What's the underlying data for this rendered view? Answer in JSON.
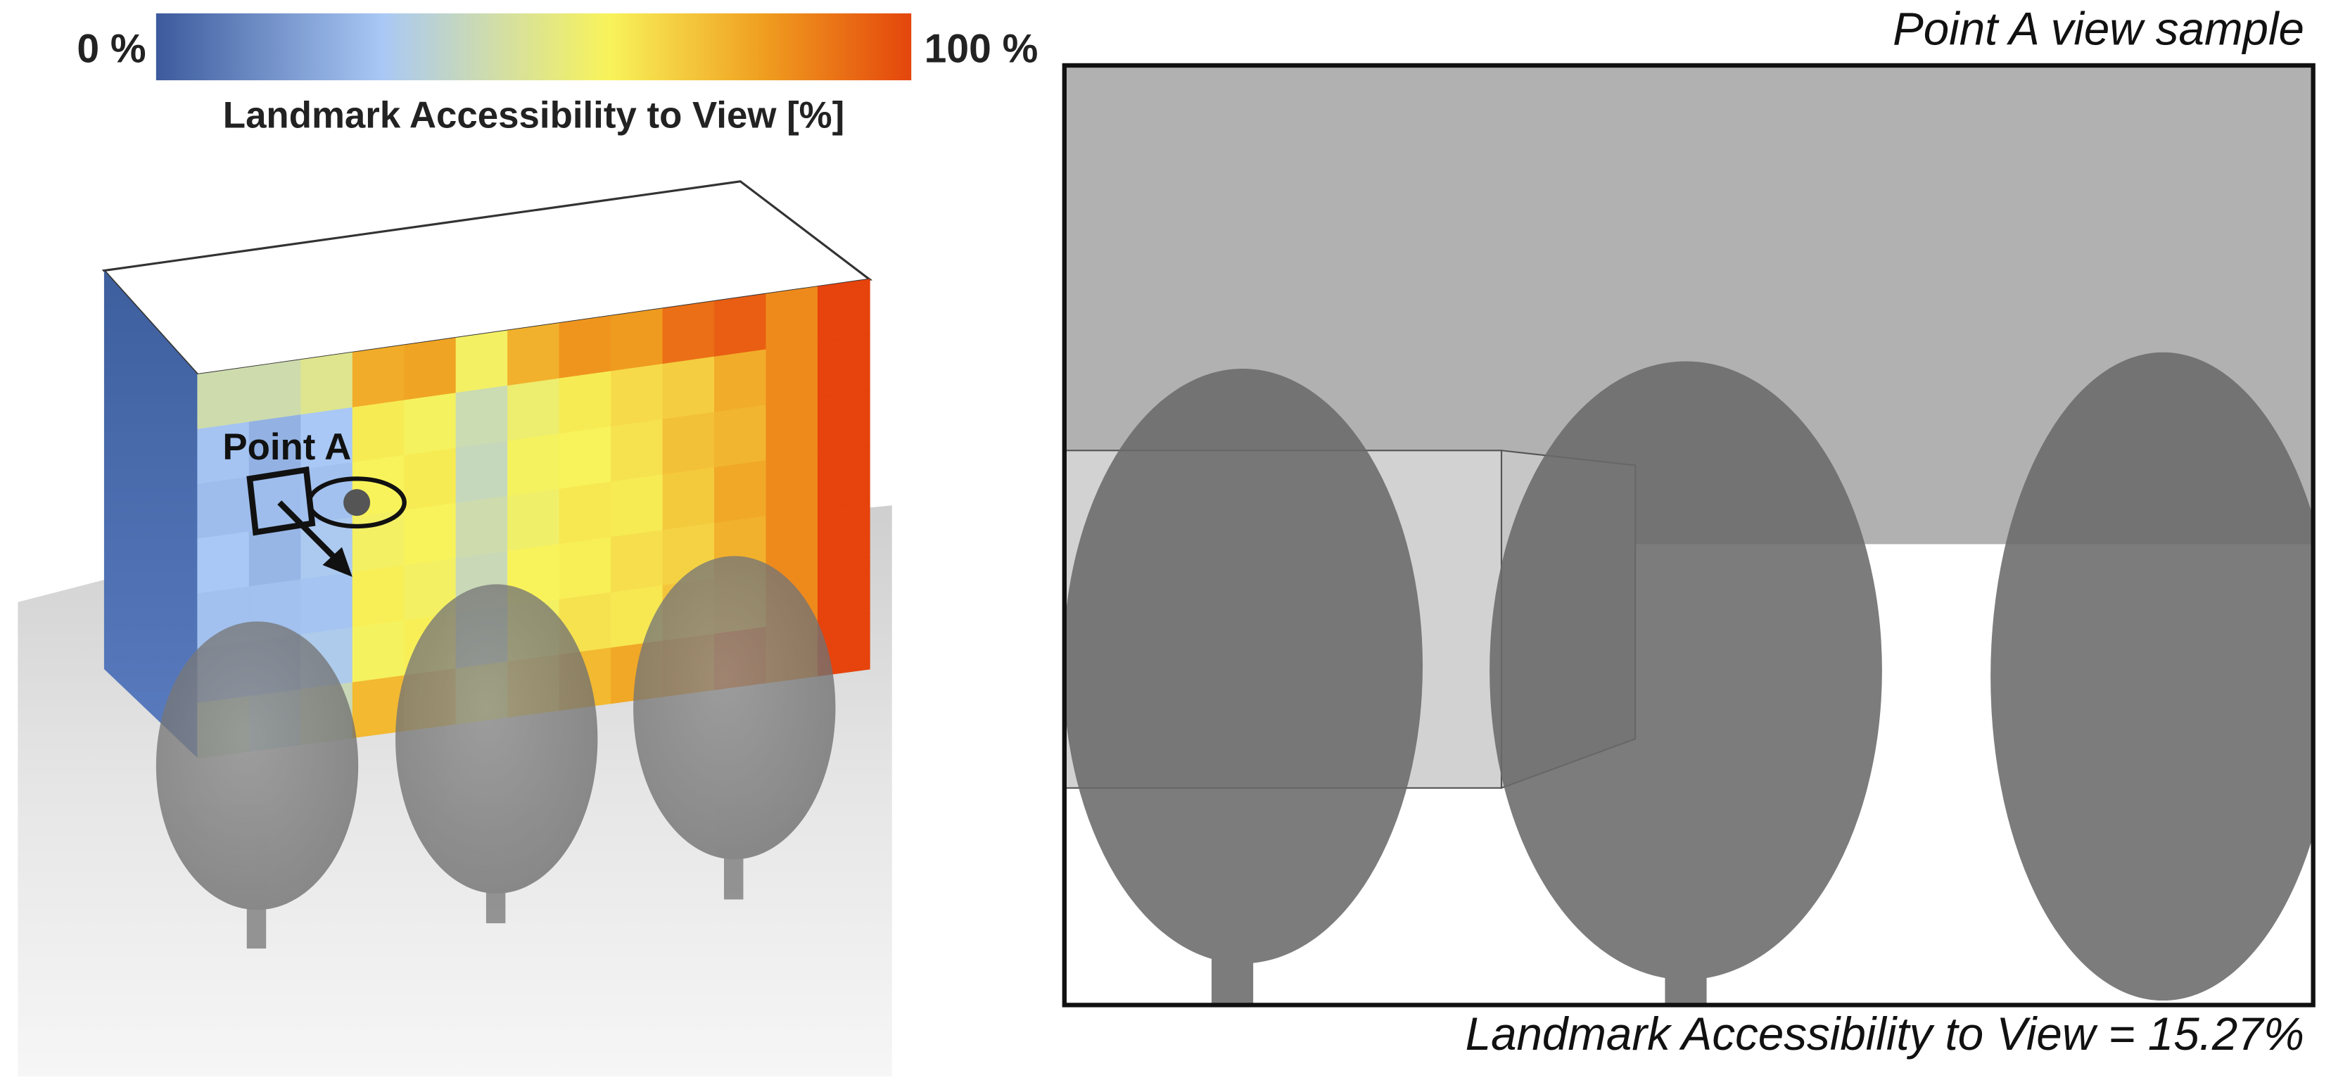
{
  "colorbar": {
    "min_label": "0 %",
    "max_label": "100 %",
    "title": "Landmark Accessibility to View [%]"
  },
  "left_panel": {
    "point_label": "Point A"
  },
  "right_panel": {
    "title": "Point A view sample",
    "caption": "Landmark Accessibility to View  = 15.27%"
  }
}
